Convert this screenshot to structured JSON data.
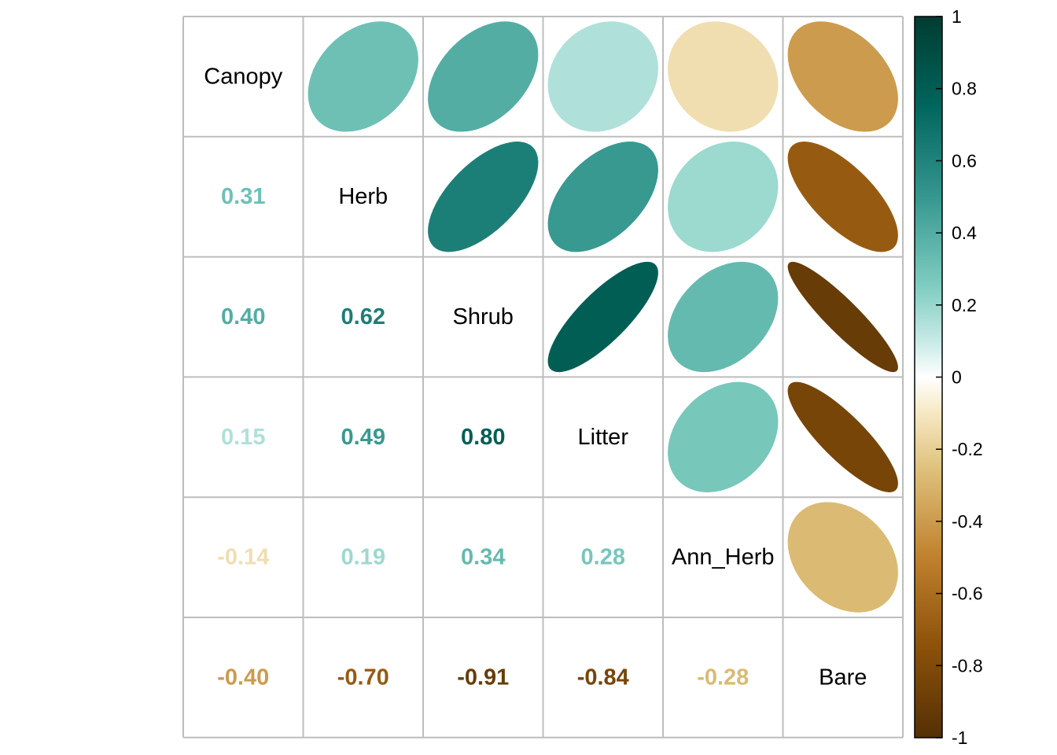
{
  "chart_data": {
    "type": "heatmap",
    "variables": [
      "Canopy",
      "Herb",
      "Shrub",
      "Litter",
      "Ann_Herb",
      "Bare"
    ],
    "matrix": [
      [
        1.0,
        0.31,
        0.4,
        0.15,
        -0.14,
        -0.4
      ],
      [
        0.31,
        1.0,
        0.62,
        0.49,
        0.19,
        -0.7
      ],
      [
        0.4,
        0.62,
        1.0,
        0.8,
        0.34,
        -0.91
      ],
      [
        0.15,
        0.49,
        0.8,
        1.0,
        0.28,
        -0.84
      ],
      [
        -0.14,
        0.19,
        0.34,
        0.28,
        1.0,
        -0.28
      ],
      [
        -0.4,
        -0.7,
        -0.91,
        -0.84,
        -0.28,
        1.0
      ]
    ],
    "coefficient_labels": [
      {
        "row": 1,
        "col": 0,
        "text": "0.31"
      },
      {
        "row": 2,
        "col": 0,
        "text": "0.40"
      },
      {
        "row": 2,
        "col": 1,
        "text": "0.62"
      },
      {
        "row": 3,
        "col": 0,
        "text": "0.15"
      },
      {
        "row": 3,
        "col": 1,
        "text": "0.49"
      },
      {
        "row": 3,
        "col": 2,
        "text": "0.80"
      },
      {
        "row": 4,
        "col": 0,
        "text": "-0.14"
      },
      {
        "row": 4,
        "col": 1,
        "text": "0.19"
      },
      {
        "row": 4,
        "col": 2,
        "text": "0.34"
      },
      {
        "row": 4,
        "col": 3,
        "text": "0.28"
      },
      {
        "row": 5,
        "col": 0,
        "text": "-0.40"
      },
      {
        "row": 5,
        "col": 1,
        "text": "-0.70"
      },
      {
        "row": 5,
        "col": 2,
        "text": "-0.91"
      },
      {
        "row": 5,
        "col": 3,
        "text": "-0.84"
      },
      {
        "row": 5,
        "col": 4,
        "text": "-0.28"
      }
    ],
    "upper_triangle": "ellipse",
    "lower_triangle": "number",
    "diagonal": "variable-name",
    "grid": true,
    "legend": {
      "position": "right",
      "range": [
        -1,
        1
      ],
      "tick_labels": [
        "1",
        "0.8",
        "0.6",
        "0.4",
        "0.2",
        "0",
        "-0.2",
        "-0.4",
        "-0.6",
        "-0.8",
        "-1"
      ],
      "tick_values": [
        1,
        0.8,
        0.6,
        0.4,
        0.2,
        0,
        -0.2,
        -0.4,
        -0.6,
        -0.8,
        -1
      ]
    },
    "colors": {
      "stops": [
        {
          "value": -1.0,
          "color": "#543005"
        },
        {
          "value": -0.75,
          "color": "#8C510A"
        },
        {
          "value": -0.5,
          "color": "#BF812D"
        },
        {
          "value": -0.25,
          "color": "#DFC27D"
        },
        {
          "value": -0.1,
          "color": "#F6E8C3"
        },
        {
          "value": 0.0,
          "color": "#FFFFFF"
        },
        {
          "value": 0.1,
          "color": "#C7EAE5"
        },
        {
          "value": 0.25,
          "color": "#80CDC1"
        },
        {
          "value": 0.5,
          "color": "#35978F"
        },
        {
          "value": 0.75,
          "color": "#01665E"
        },
        {
          "value": 1.0,
          "color": "#003C30"
        }
      ],
      "grid_line": "#BDBDBD",
      "label_text": "#000000"
    }
  }
}
